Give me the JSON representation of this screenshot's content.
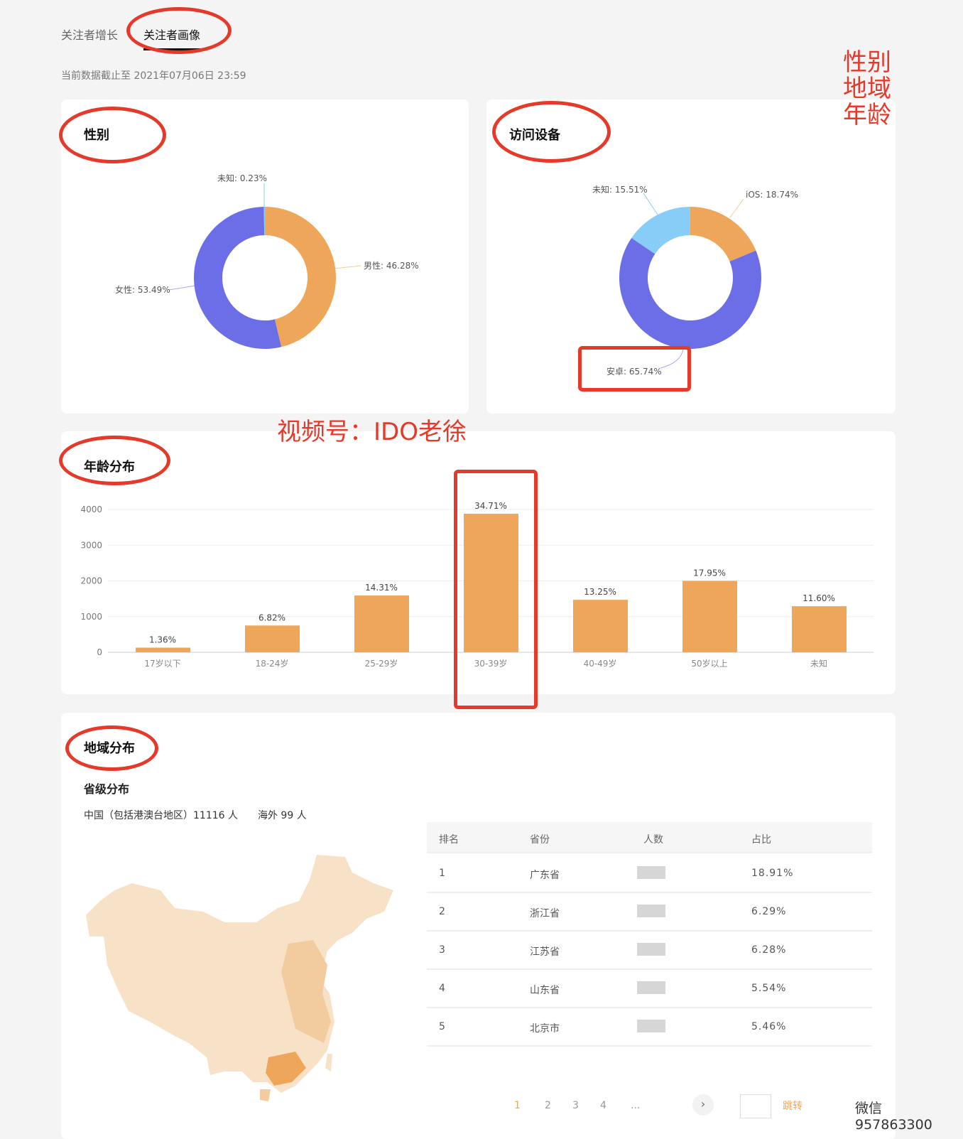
{
  "tabs": [
    {
      "label": "关注者增长",
      "active": false
    },
    {
      "label": "关注者画像",
      "active": true
    }
  ],
  "data_time": "当前数据截止至 2021年07月06日 23:59",
  "colors": {
    "orange": "#eea75a",
    "purple": "#6c6ee8",
    "lightblue": "#87cdf7",
    "accent_red": "#e53a2a"
  },
  "gender": {
    "title": "性别",
    "slices": [
      {
        "label": "男性",
        "value": 46.28,
        "text": "男性: 46.28%"
      },
      {
        "label": "女性",
        "value": 53.49,
        "text": "女性: 53.49%"
      },
      {
        "label": "未知",
        "value": 0.23,
        "text": "未知: 0.23%"
      }
    ]
  },
  "device": {
    "title": "访问设备",
    "slices": [
      {
        "label": "iOS",
        "value": 18.74,
        "text": "iOS: 18.74%"
      },
      {
        "label": "安卓",
        "value": 65.74,
        "text": "安卓: 65.74%"
      },
      {
        "label": "未知",
        "value": 15.51,
        "text": "未知: 15.51%"
      }
    ]
  },
  "age": {
    "title": "年龄分布"
  },
  "chart_data": {
    "type": "bar",
    "categories": [
      "17岁以下",
      "18-24岁",
      "25-29岁",
      "30-39岁",
      "40-49岁",
      "50岁以上",
      "未知"
    ],
    "values": [
      130,
      750,
      1590,
      3880,
      1470,
      2000,
      1290
    ],
    "data_labels": [
      "1.36%",
      "6.82%",
      "14.31%",
      "34.71%",
      "13.25%",
      "17.95%",
      "11.60%"
    ],
    "yticks": [
      "0",
      "1000",
      "2000",
      "3000",
      "4000"
    ],
    "ylim": [
      0,
      4000
    ],
    "grid": true
  },
  "region": {
    "title": "地域分布",
    "subtitle": "省级分布",
    "summary": "中国（包括港澳台地区）11116 人　　海外 99 人",
    "table": {
      "headers": [
        "排名",
        "省份",
        "人数",
        "占比"
      ],
      "rows": [
        {
          "rank": "1",
          "province": "广东省",
          "share": "18.91%"
        },
        {
          "rank": "2",
          "province": "浙江省",
          "share": "6.29%"
        },
        {
          "rank": "3",
          "province": "江苏省",
          "share": "6.28%"
        },
        {
          "rank": "4",
          "province": "山东省",
          "share": "5.54%"
        },
        {
          "rank": "5",
          "province": "北京市",
          "share": "5.46%"
        }
      ]
    },
    "pagination": {
      "pages": [
        "1",
        "2",
        "3",
        "4",
        "..."
      ],
      "current": "1",
      "next": "›",
      "jump": "跳转"
    }
  },
  "annotations": {
    "side": [
      "性别",
      "地域",
      "年龄"
    ],
    "channel": "视频号：IDO老徐",
    "wechat": "微信 957863300"
  }
}
